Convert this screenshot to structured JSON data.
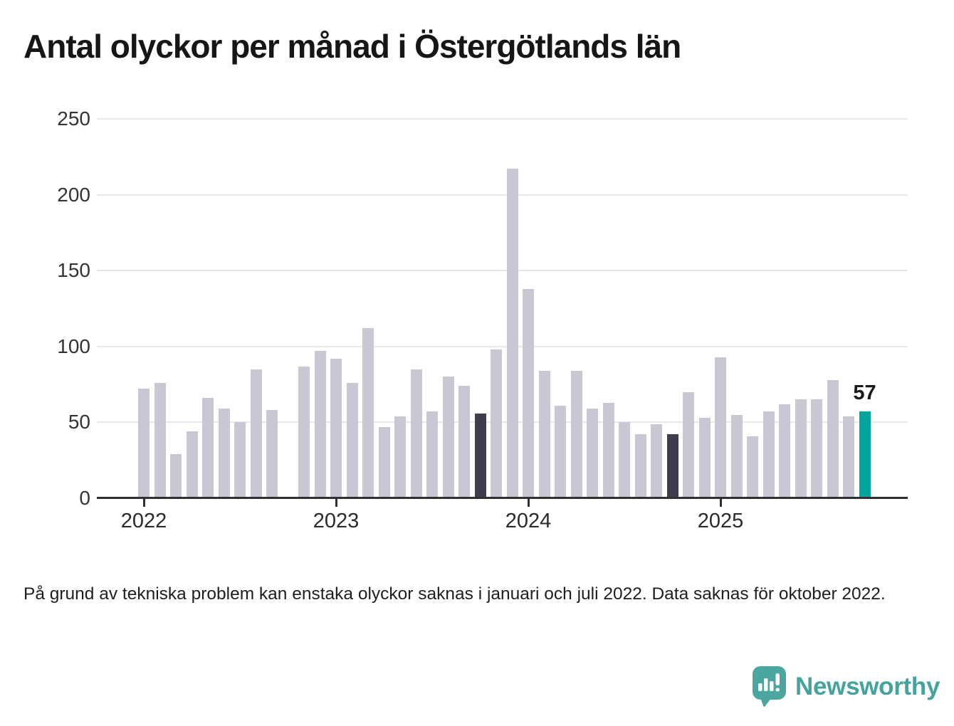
{
  "title": "Antal olyckor per månad i Östergötlands län",
  "footnote": "På grund av tekniska problem kan enstaka olyckor saknas i januari och juli 2022. Data saknas för oktober 2022.",
  "branding": {
    "name": "Newsworthy",
    "icon": "speech-bubble-bar-chart-exclamation"
  },
  "annotation": {
    "last_value_label": "57"
  },
  "colors": {
    "bar_default": "#c9c7d3",
    "bar_highlight_dark": "#3f3d4d",
    "bar_highlight_accent": "#00a69c",
    "grid": "#e8e8e8",
    "axis": "#303030",
    "logo_teal": "#4ba6a0",
    "logo_text_teal": "#44a39d"
  },
  "chart_data": {
    "type": "bar",
    "title": "Antal olyckor per månad i Östergötlands län",
    "xlabel": "",
    "ylabel": "",
    "ylim": [
      0,
      250
    ],
    "y_ticks": [
      0,
      50,
      100,
      150,
      200,
      250
    ],
    "x_tick_labels": [
      "2022",
      "2023",
      "2024",
      "2025"
    ],
    "grid": true,
    "legend": false,
    "points": [
      {
        "month": "2022-01",
        "value": 72
      },
      {
        "month": "2022-02",
        "value": 76
      },
      {
        "month": "2022-03",
        "value": 29
      },
      {
        "month": "2022-04",
        "value": 44
      },
      {
        "month": "2022-05",
        "value": 66
      },
      {
        "month": "2022-06",
        "value": 59
      },
      {
        "month": "2022-07",
        "value": 50
      },
      {
        "month": "2022-08",
        "value": 85
      },
      {
        "month": "2022-09",
        "value": 58
      },
      {
        "month": "2022-10",
        "value": null
      },
      {
        "month": "2022-11",
        "value": 87
      },
      {
        "month": "2022-12",
        "value": 97
      },
      {
        "month": "2023-01",
        "value": 92
      },
      {
        "month": "2023-02",
        "value": 76
      },
      {
        "month": "2023-03",
        "value": 112
      },
      {
        "month": "2023-04",
        "value": 47
      },
      {
        "month": "2023-05",
        "value": 54
      },
      {
        "month": "2023-06",
        "value": 85
      },
      {
        "month": "2023-07",
        "value": 57
      },
      {
        "month": "2023-08",
        "value": 80
      },
      {
        "month": "2023-09",
        "value": 74
      },
      {
        "month": "2023-10",
        "value": 56,
        "highlight": "dark"
      },
      {
        "month": "2023-11",
        "value": 98
      },
      {
        "month": "2023-12",
        "value": 217
      },
      {
        "month": "2024-01",
        "value": 138
      },
      {
        "month": "2024-02",
        "value": 84
      },
      {
        "month": "2024-03",
        "value": 61
      },
      {
        "month": "2024-04",
        "value": 84
      },
      {
        "month": "2024-05",
        "value": 59
      },
      {
        "month": "2024-06",
        "value": 63
      },
      {
        "month": "2024-07",
        "value": 50
      },
      {
        "month": "2024-08",
        "value": 42
      },
      {
        "month": "2024-09",
        "value": 49
      },
      {
        "month": "2024-10",
        "value": 42,
        "highlight": "dark"
      },
      {
        "month": "2024-11",
        "value": 70
      },
      {
        "month": "2024-12",
        "value": 53
      },
      {
        "month": "2025-01",
        "value": 93
      },
      {
        "month": "2025-02",
        "value": 55
      },
      {
        "month": "2025-03",
        "value": 41
      },
      {
        "month": "2025-04",
        "value": 57
      },
      {
        "month": "2025-05",
        "value": 62
      },
      {
        "month": "2025-06",
        "value": 65
      },
      {
        "month": "2025-07",
        "value": 65
      },
      {
        "month": "2025-08",
        "value": 78
      },
      {
        "month": "2025-09",
        "value": 54
      },
      {
        "month": "2025-10",
        "value": 57,
        "highlight": "accent",
        "data_label": "57"
      }
    ]
  }
}
